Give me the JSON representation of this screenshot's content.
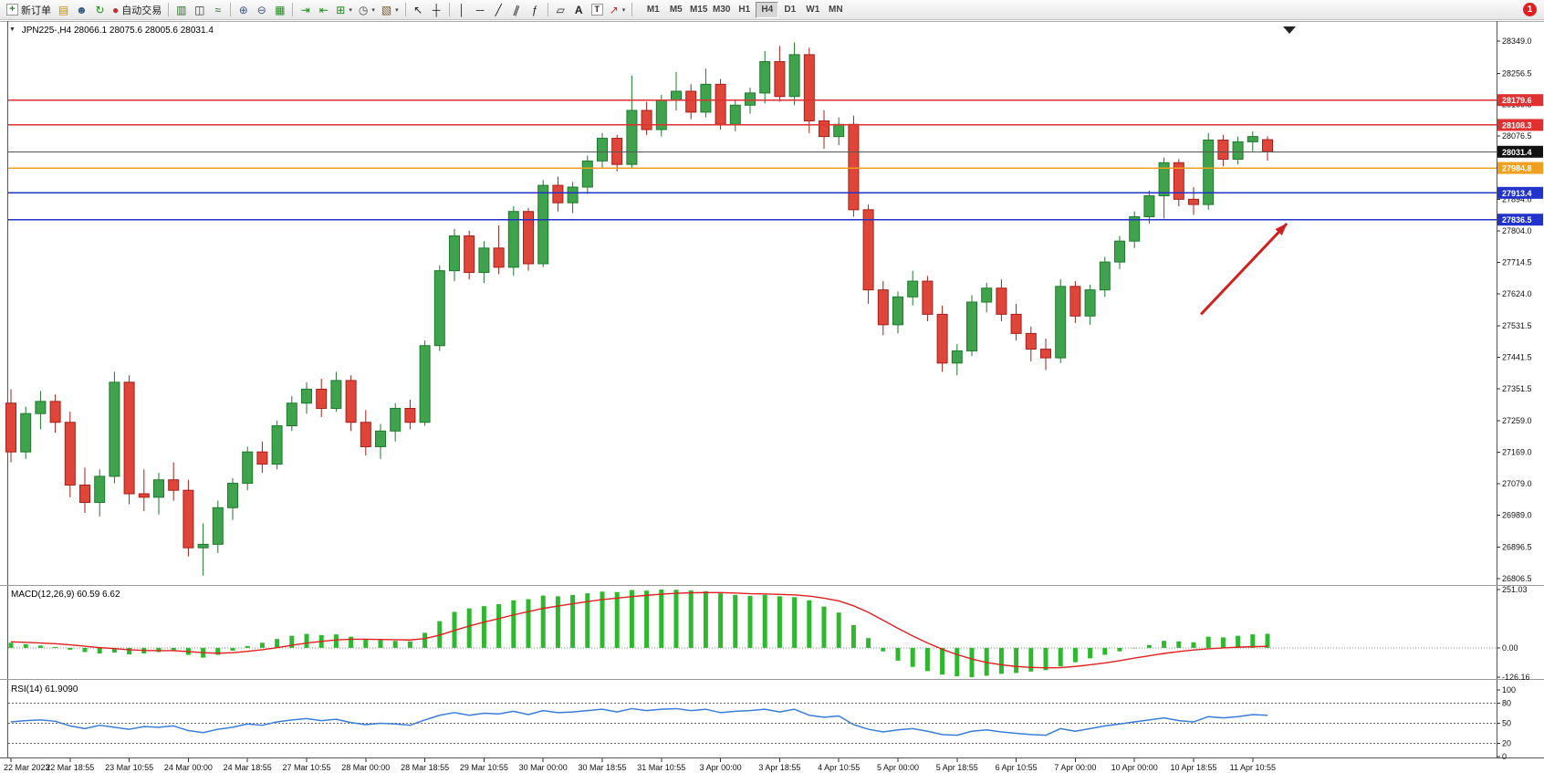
{
  "window": {
    "notification_count": "1"
  },
  "toolbar": {
    "new_order_label": "新订单",
    "autotrading_label": "自动交易",
    "icons": [
      "new-order",
      "depth-of-market",
      "accounts",
      "refresh",
      "autotrading",
      "bar-chart",
      "candlestick-chart",
      "line-chart",
      "zoom-in",
      "zoom-out",
      "tile-windows",
      "auto-scroll",
      "chart-shift",
      "indicators",
      "periods",
      "templates",
      "cursor",
      "crosshair",
      "vertical-line",
      "horizontal-line",
      "trendline",
      "equidistant-channel",
      "fibonacci",
      "shapes",
      "text",
      "text-label",
      "arrows",
      "one-click-trading",
      "chart-shift-marker",
      "notification-badge"
    ],
    "timeframes": [
      "M1",
      "M5",
      "M15",
      "M30",
      "H1",
      "H4",
      "D1",
      "W1",
      "MN"
    ],
    "active_timeframe": "H4"
  },
  "chart": {
    "header": "JPN225-,H4 28066.1 28075.6 28005.6 28031.4",
    "macd_label": "MACD(12,26,9) 60.59 6.62",
    "rsi_label": "RSI(14) 61.9090"
  },
  "colors": {
    "bull": "#3fa34d",
    "bull_border": "#1d7a2c",
    "bear": "#e0453a",
    "bear_border": "#a52019",
    "macd_hist": "#2db82d",
    "macd_signal": "#e02020",
    "rsi_line": "#3b7dd8",
    "resistance": "#e03030",
    "pivot": "#f0a020",
    "support": "#2233cc",
    "current": "#111111",
    "arrow": "#d02020"
  },
  "chart_data": {
    "type": "candlestick",
    "symbol": "JPN225-",
    "timeframe": "H4",
    "ohlc_current": {
      "open": 28066.1,
      "high": 28075.6,
      "low": 28005.6,
      "close": 28031.4
    },
    "ylim": [
      26806.5,
      28349.0
    ],
    "price_axis_labels": [
      "28349.0",
      "28256.5",
      "28166.5",
      "28076.5",
      "27986.5",
      "27894.0",
      "27804.0",
      "27714.5",
      "27624.0",
      "27531.5",
      "27441.5",
      "27351.5",
      "27259.0",
      "27169.0",
      "27079.0",
      "26989.0",
      "26896.5",
      "26806.5"
    ],
    "label_every_n_candles": 4,
    "time_labels": [
      "22 Mar 2023",
      "22 Mar 18:55",
      "23 Mar 10:55",
      "24 Mar 00:00",
      "24 Mar 18:55",
      "27 Mar 10:55",
      "28 Mar 00:00",
      "28 Mar 18:55",
      "29 Mar 10:55",
      "30 Mar 00:00",
      "30 Mar 18:55",
      "31 Mar 10:55",
      "3 Apr 00:00",
      "3 Apr 18:55",
      "4 Apr 10:55",
      "5 Apr 00:00",
      "5 Apr 18:55",
      "6 Apr 10:55",
      "7 Apr 00:00",
      "10 Apr 00:00",
      "10 Apr 18:55",
      "11 Apr 10:55"
    ],
    "candles": [
      [
        27310,
        27350,
        27140,
        27170
      ],
      [
        27170,
        27300,
        27150,
        27280
      ],
      [
        27280,
        27345,
        27235,
        27315
      ],
      [
        27315,
        27335,
        27225,
        27255
      ],
      [
        27255,
        27285,
        27040,
        27075
      ],
      [
        27075,
        27125,
        26995,
        27025
      ],
      [
        27025,
        27120,
        26985,
        27100
      ],
      [
        27100,
        27400,
        27080,
        27370
      ],
      [
        27370,
        27390,
        27020,
        27050
      ],
      [
        27050,
        27120,
        27000,
        27040
      ],
      [
        27040,
        27110,
        26990,
        27090
      ],
      [
        27090,
        27140,
        27030,
        27060
      ],
      [
        27060,
        27090,
        26870,
        26895
      ],
      [
        26895,
        26965,
        26815,
        26905
      ],
      [
        26905,
        27030,
        26880,
        27010
      ],
      [
        27010,
        27095,
        26975,
        27080
      ],
      [
        27080,
        27185,
        27060,
        27170
      ],
      [
        27170,
        27200,
        27110,
        27135
      ],
      [
        27135,
        27260,
        27120,
        27245
      ],
      [
        27245,
        27330,
        27230,
        27310
      ],
      [
        27310,
        27370,
        27280,
        27350
      ],
      [
        27350,
        27380,
        27270,
        27295
      ],
      [
        27295,
        27400,
        27285,
        27375
      ],
      [
        27375,
        27390,
        27230,
        27255
      ],
      [
        27255,
        27290,
        27160,
        27185
      ],
      [
        27185,
        27250,
        27150,
        27230
      ],
      [
        27230,
        27310,
        27200,
        27295
      ],
      [
        27295,
        27320,
        27235,
        27255
      ],
      [
        27255,
        27490,
        27245,
        27475
      ],
      [
        27475,
        27705,
        27460,
        27690
      ],
      [
        27690,
        27810,
        27660,
        27790
      ],
      [
        27790,
        27805,
        27665,
        27685
      ],
      [
        27685,
        27775,
        27655,
        27755
      ],
      [
        27755,
        27820,
        27680,
        27700
      ],
      [
        27700,
        27875,
        27675,
        27860
      ],
      [
        27860,
        27870,
        27690,
        27710
      ],
      [
        27710,
        27950,
        27700,
        27935
      ],
      [
        27935,
        27960,
        27860,
        27885
      ],
      [
        27885,
        27945,
        27855,
        27930
      ],
      [
        27930,
        28020,
        27910,
        28005
      ],
      [
        28005,
        28085,
        27985,
        28070
      ],
      [
        28070,
        28080,
        27975,
        27995
      ],
      [
        27995,
        28250,
        27985,
        28150
      ],
      [
        28150,
        28175,
        28080,
        28095
      ],
      [
        28095,
        28195,
        28075,
        28180
      ],
      [
        28180,
        28260,
        28150,
        28205
      ],
      [
        28205,
        28225,
        28125,
        28145
      ],
      [
        28145,
        28270,
        28130,
        28225
      ],
      [
        28225,
        28240,
        28095,
        28110
      ],
      [
        28110,
        28180,
        28090,
        28165
      ],
      [
        28165,
        28215,
        28140,
        28200
      ],
      [
        28200,
        28320,
        28170,
        28290
      ],
      [
        28290,
        28335,
        28175,
        28190
      ],
      [
        28190,
        28345,
        28165,
        28310
      ],
      [
        28310,
        28330,
        28085,
        28120
      ],
      [
        28120,
        28150,
        28040,
        28075
      ],
      [
        28075,
        28130,
        28050,
        28110
      ],
      [
        28110,
        28135,
        27845,
        27865
      ],
      [
        27865,
        27880,
        27595,
        27635
      ],
      [
        27635,
        27660,
        27505,
        27535
      ],
      [
        27535,
        27630,
        27510,
        27615
      ],
      [
        27615,
        27690,
        27590,
        27660
      ],
      [
        27660,
        27675,
        27545,
        27565
      ],
      [
        27565,
        27590,
        27400,
        27425
      ],
      [
        27425,
        27480,
        27390,
        27460
      ],
      [
        27460,
        27620,
        27445,
        27600
      ],
      [
        27600,
        27655,
        27570,
        27640
      ],
      [
        27640,
        27665,
        27545,
        27565
      ],
      [
        27565,
        27595,
        27490,
        27510
      ],
      [
        27510,
        27530,
        27430,
        27465
      ],
      [
        27465,
        27495,
        27405,
        27440
      ],
      [
        27440,
        27665,
        27425,
        27645
      ],
      [
        27645,
        27660,
        27540,
        27560
      ],
      [
        27560,
        27650,
        27535,
        27635
      ],
      [
        27635,
        27730,
        27615,
        27715
      ],
      [
        27715,
        27790,
        27695,
        27775
      ],
      [
        27775,
        27860,
        27755,
        27845
      ],
      [
        27845,
        27920,
        27825,
        27905
      ],
      [
        27905,
        28015,
        27840,
        28000
      ],
      [
        28000,
        28010,
        27875,
        27895
      ],
      [
        27895,
        27930,
        27850,
        27880
      ],
      [
        27880,
        28085,
        27865,
        28065
      ],
      [
        28065,
        28080,
        27990,
        28010
      ],
      [
        28010,
        28075,
        27995,
        28060
      ],
      [
        28060,
        28090,
        28030,
        28075
      ],
      [
        28066.1,
        28075.6,
        28005.6,
        28031.4
      ]
    ],
    "horizontal_lines": [
      {
        "price": 28179.6,
        "label": "28179.6",
        "color": "#e03030"
      },
      {
        "price": 28108.3,
        "label": "28108.3",
        "color": "#e03030"
      },
      {
        "price": 27984.8,
        "label": "27984.8",
        "color": "#f0a020"
      },
      {
        "price": 27913.4,
        "label": "27913.4",
        "color": "#2233cc"
      },
      {
        "price": 27836.5,
        "label": "27836.5",
        "color": "#2233cc"
      }
    ],
    "current_price_line": {
      "price": 28031.4,
      "label": "28031.4",
      "color": "#111111"
    },
    "macd": {
      "title": "MACD(12,26,9)",
      "current_main": 60.59,
      "current_signal": 6.62,
      "ylim": [
        -126.16,
        251.03
      ],
      "scale_labels": [
        "251.03",
        "0.00",
        "-126.16"
      ],
      "histogram": [
        22,
        16,
        10,
        4,
        -8,
        -18,
        -24,
        -20,
        -28,
        -24,
        -18,
        -10,
        -30,
        -42,
        -30,
        -12,
        8,
        22,
        38,
        52,
        60,
        55,
        58,
        48,
        38,
        34,
        30,
        28,
        65,
        115,
        155,
        170,
        180,
        188,
        205,
        210,
        225,
        222,
        228,
        235,
        242,
        240,
        249,
        246,
        251.03,
        250,
        247,
        244,
        235,
        228,
        224,
        228,
        222,
        218,
        205,
        178,
        152,
        98,
        42,
        -15,
        -55,
        -82,
        -100,
        -115,
        -122,
        -126.16,
        -120,
        -112,
        -108,
        -102,
        -96,
        -80,
        -62,
        -45,
        -30,
        -15,
        -2,
        12,
        30,
        28,
        24,
        48,
        45,
        52,
        58,
        60.59
      ],
      "signal": [
        26,
        24,
        21,
        18,
        13,
        7,
        1,
        -3,
        -8,
        -11,
        -12,
        -12,
        -16,
        -21,
        -23,
        -21,
        -15,
        -8,
        1,
        11,
        21,
        28,
        34,
        37,
        37,
        36,
        35,
        34,
        40,
        55,
        75,
        94,
        111,
        126,
        142,
        156,
        170,
        180,
        190,
        199,
        208,
        214,
        221,
        226,
        231,
        235,
        237,
        238,
        238,
        236,
        233,
        232,
        230,
        228,
        223,
        214,
        202,
        181,
        153,
        119,
        84,
        51,
        21,
        -6,
        -29,
        -48,
        -63,
        -73,
        -80,
        -84,
        -86,
        -85,
        -80,
        -73,
        -65,
        -55,
        -44,
        -34,
        -24,
        -16,
        -9,
        -4,
        0,
        3,
        5,
        6.62
      ]
    },
    "rsi": {
      "title": "RSI(14)",
      "current": 61.909,
      "ylim": [
        0,
        100
      ],
      "levels": [
        80,
        50,
        20
      ],
      "scale_labels": [
        "100",
        "80",
        "50",
        "20",
        "0"
      ],
      "values": [
        52,
        54,
        55,
        53,
        46,
        42,
        47,
        44,
        41,
        45,
        44,
        46,
        39,
        36,
        41,
        44,
        49,
        47,
        52,
        55,
        57,
        54,
        56,
        51,
        48,
        50,
        49,
        47,
        55,
        62,
        66,
        62,
        65,
        64,
        68,
        63,
        69,
        66,
        67,
        69,
        71,
        67,
        72,
        69,
        71,
        72,
        69,
        71,
        66,
        68,
        69,
        71,
        67,
        71,
        62,
        59,
        61,
        48,
        41,
        37,
        40,
        42,
        38,
        33,
        32,
        38,
        40,
        37,
        35,
        33,
        32,
        42,
        38,
        42,
        46,
        49,
        52,
        55,
        58,
        54,
        52,
        60,
        58,
        60,
        63,
        61.909
      ],
      "rsi_line_color": "#3b7dd8"
    },
    "annotation_arrow": {
      "from": {
        "bar": 80.5,
        "price": 27565
      },
      "to": {
        "bar": 86.3,
        "price": 27825
      }
    }
  }
}
